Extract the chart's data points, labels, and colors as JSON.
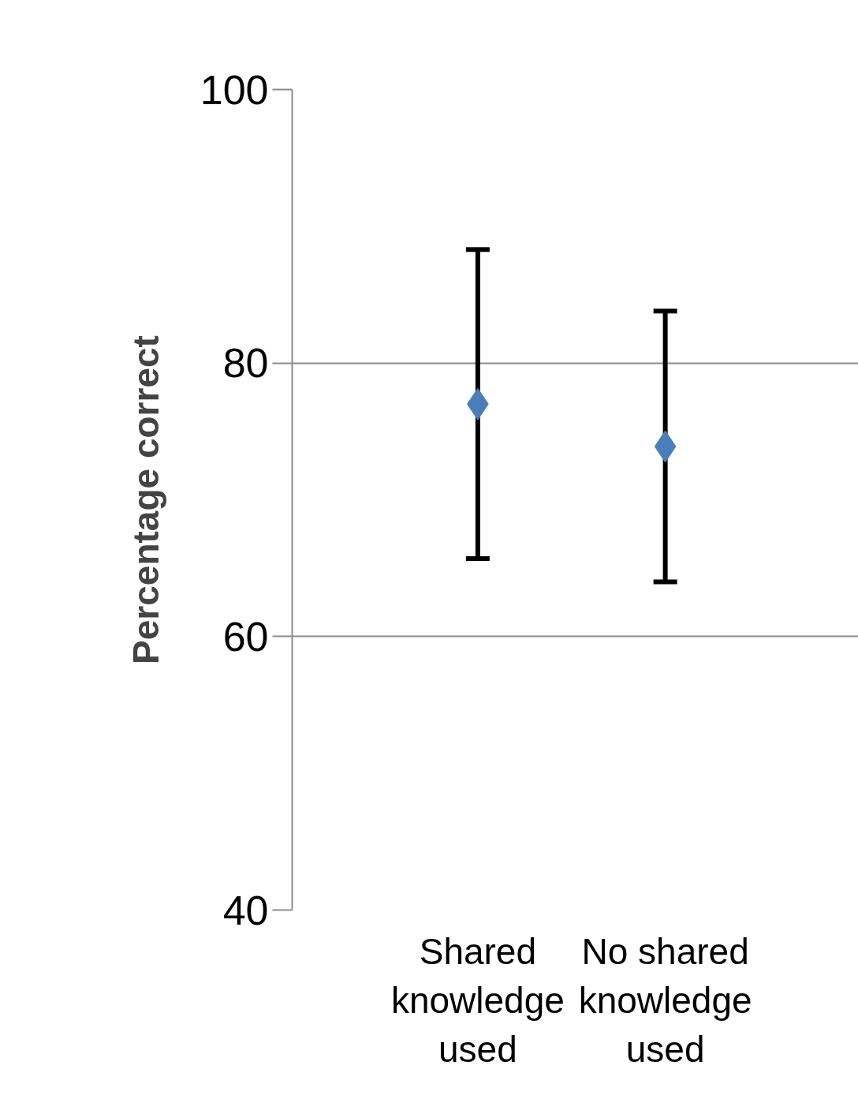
{
  "chart_data": {
    "type": "scatter",
    "ylabel": "Percentage correct",
    "categories": [
      "Shared knowledge used",
      "No shared knowledge used"
    ],
    "series": [
      {
        "color": "#4a7ebb",
        "values": [
          77.0,
          73.9
        ],
        "errors": [
          11.3,
          9.9
        ]
      }
    ],
    "ylim": [
      40,
      100
    ],
    "yticks": [
      40,
      60,
      80,
      100
    ],
    "grid": "y",
    "marker": "diamond"
  }
}
